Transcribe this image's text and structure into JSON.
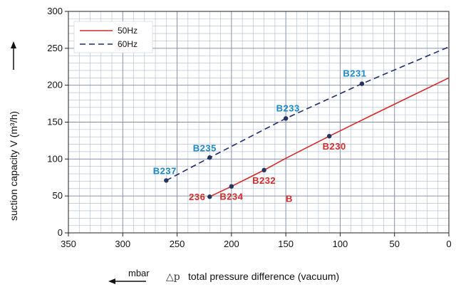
{
  "chart_data": {
    "type": "line",
    "xlabel_prefix": "△p",
    "xlabel": "total pressure difference (vacuum)",
    "xunit": "mbar",
    "ylabel": "suction capacity V (m³/h)",
    "xlim": [
      350,
      0
    ],
    "ylim": [
      0,
      300
    ],
    "x_ticks": [
      350,
      300,
      250,
      200,
      150,
      100,
      50,
      0
    ],
    "y_ticks": [
      0,
      50,
      100,
      150,
      200,
      250,
      300
    ],
    "x_reversed": true,
    "grid": true,
    "legend_position": "top-left",
    "colors": {
      "s50": "#d42a2a",
      "s60": "#1f2c6e",
      "label50": "#d42a2a",
      "label60": "#1a88c9",
      "grid": "#aeb9d0",
      "marker": "#25355f"
    },
    "series": [
      {
        "name": "50Hz",
        "style": "solid",
        "points": [
          {
            "x": 220,
            "y": 49,
            "label": "236"
          },
          {
            "x": 200,
            "y": 63,
            "label": "B234"
          },
          {
            "x": 170,
            "y": 85,
            "label": "B232"
          },
          {
            "x": 110,
            "y": 131,
            "label": "B230"
          }
        ],
        "line": [
          [
            220,
            49
          ],
          [
            200,
            63
          ],
          [
            170,
            85
          ],
          [
            150,
            101
          ],
          [
            110,
            131
          ],
          [
            70,
            160
          ],
          [
            0,
            210
          ]
        ]
      },
      {
        "name": "60Hz",
        "style": "dashed",
        "points": [
          {
            "x": 260,
            "y": 71,
            "label": "B237"
          },
          {
            "x": 220,
            "y": 102,
            "label": "B235"
          },
          {
            "x": 150,
            "y": 155,
            "label": "B233"
          },
          {
            "x": 80,
            "y": 202,
            "label": "B231"
          }
        ],
        "line": [
          [
            260,
            71
          ],
          [
            220,
            102
          ],
          [
            150,
            155
          ],
          [
            80,
            202
          ],
          [
            0,
            252
          ]
        ]
      }
    ],
    "annotations": [
      {
        "text": "B",
        "x": 147,
        "y": 47,
        "series": "50Hz"
      }
    ]
  }
}
